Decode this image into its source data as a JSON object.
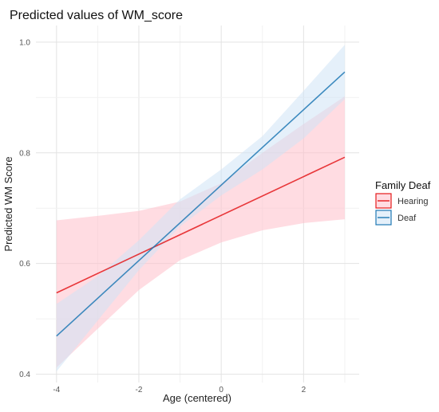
{
  "chart_data": {
    "type": "line",
    "title": "Predicted values of WM_score",
    "xlabel": "Age (centered)",
    "ylabel": "Predicted WM Score",
    "xlim": [
      -4.5,
      3.35
    ],
    "ylim": [
      0.385,
      1.03
    ],
    "x_ticks": [
      -4,
      -2,
      0,
      2
    ],
    "x_tick_labels": [
      "-4",
      "-2",
      "0",
      "2"
    ],
    "y_ticks": [
      0.4,
      0.6,
      0.8,
      1.0
    ],
    "y_tick_labels": [
      "0.4",
      "0.6",
      "0.8",
      "1.0"
    ],
    "grid": true,
    "legend": {
      "title": "Family Deaf",
      "placement": "right"
    },
    "series": [
      {
        "name": "Hearing",
        "color": "#e41a1c",
        "fill": "#ffc0cb",
        "x": [
          -4,
          3
        ],
        "y": [
          0.547,
          0.792
        ],
        "ci_x": [
          -4,
          -3,
          -2,
          -1,
          0,
          1,
          2,
          3
        ],
        "ci_lower": [
          0.412,
          0.482,
          0.552,
          0.606,
          0.638,
          0.66,
          0.673,
          0.68
        ],
        "ci_upper": [
          0.678,
          0.686,
          0.695,
          0.712,
          0.745,
          0.8,
          0.852,
          0.902
        ]
      },
      {
        "name": "Deaf",
        "color": "#1f78b4",
        "fill": "#cfe3f5",
        "x": [
          -4,
          3
        ],
        "y": [
          0.469,
          0.946
        ],
        "ci_x": [
          -4,
          -3,
          -2,
          -1,
          0,
          1,
          2,
          3
        ],
        "ci_lower": [
          0.405,
          0.497,
          0.588,
          0.667,
          0.723,
          0.77,
          0.826,
          0.897
        ],
        "ci_upper": [
          0.527,
          0.577,
          0.642,
          0.716,
          0.77,
          0.83,
          0.912,
          0.995
        ]
      }
    ]
  }
}
